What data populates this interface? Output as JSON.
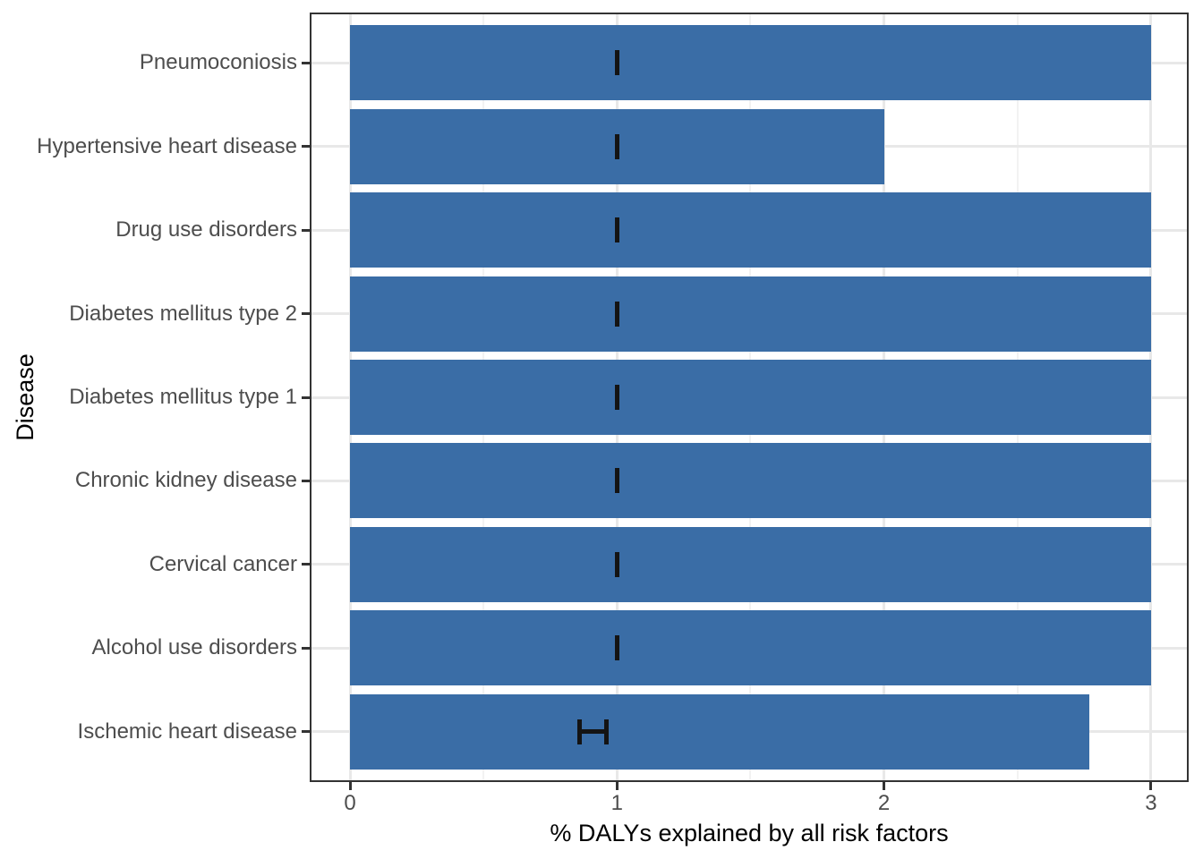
{
  "chart_data": {
    "type": "bar",
    "orientation": "horizontal",
    "title": "",
    "xlabel": "% DALYs explained by all risk factors",
    "ylabel": "Disease",
    "xlim": [
      0,
      3
    ],
    "x_major_ticks": [
      "0",
      "1",
      "2",
      "3"
    ],
    "x_major_tick_values": [
      0,
      1,
      2,
      3
    ],
    "x_minor_gridline_values": [
      0.5,
      1.5,
      2.5
    ],
    "grid": "vertical major+minor, horizontal major at category centers",
    "legend_position": "none",
    "categories": [
      "Pneumoconiosis",
      "Hypertensive heart disease",
      "Drug use disorders",
      "Diabetes mellitus type 2",
      "Diabetes mellitus type 1",
      "Chronic kidney disease",
      "Cervical cancer",
      "Alcohol use disorders",
      "Ischemic heart disease"
    ],
    "values": [
      3.0,
      2.0,
      3.0,
      3.0,
      3.0,
      3.0,
      3.0,
      3.0,
      2.77
    ],
    "error_bars": [
      {
        "low": 1.0,
        "high": 1.0
      },
      {
        "low": 1.0,
        "high": 1.0
      },
      {
        "low": 1.0,
        "high": 1.0
      },
      {
        "low": 1.0,
        "high": 1.0
      },
      {
        "low": 1.0,
        "high": 1.0
      },
      {
        "low": 1.0,
        "high": 1.0
      },
      {
        "low": 1.0,
        "high": 1.0
      },
      {
        "low": 1.0,
        "high": 1.0
      },
      {
        "low": 0.86,
        "high": 0.96
      }
    ],
    "colors": {
      "bar_fill": "#3A6DA6",
      "error_bar": "#141414",
      "grid_major": "#E8E8E8",
      "grid_minor": "#F2F2F2",
      "panel_border": "#333333",
      "tick_mark": "#333333",
      "tick_label": "#4D4D4D",
      "axis_title": "#000000",
      "background": "#FFFFFF"
    }
  }
}
